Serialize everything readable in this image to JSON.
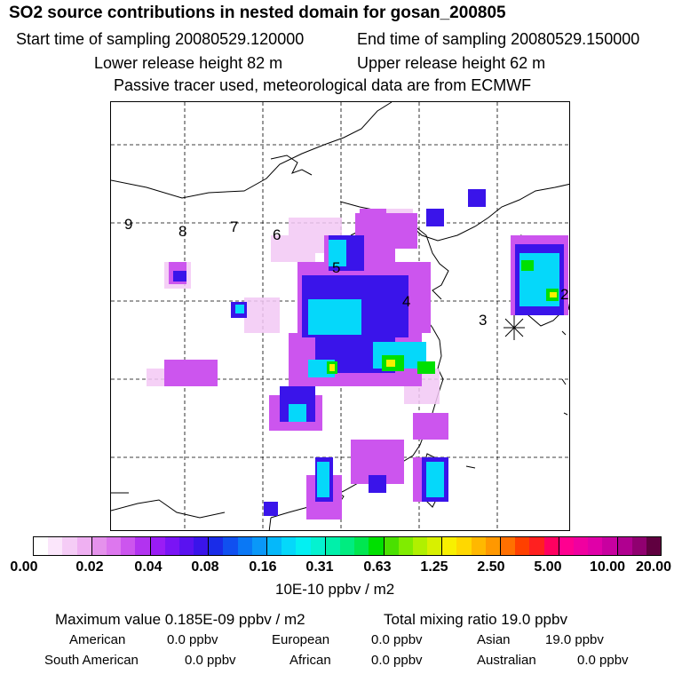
{
  "header": {
    "title": "SO2 source contributions in nested domain for gosan_200805",
    "start_time": "Start time of sampling 20080529.120000",
    "end_time": "End time of sampling 20080529.150000",
    "lower_height": "Lower release height   82 m",
    "upper_height": "Upper release height   62 m",
    "tracer_note": "Passive tracer used, meteorological data are from ECMWF"
  },
  "map": {
    "trajectory_labels": [
      "9",
      "8",
      "7",
      "6",
      "5",
      "4",
      "3",
      "2"
    ],
    "receptor_icon": "asterisk-icon"
  },
  "colorbar": {
    "unit": "10E-10 ppbv / m2",
    "tick_labels": [
      "0.00",
      "0.02",
      "0.04",
      "0.08",
      "0.16",
      "0.31",
      "0.63",
      "1.25",
      "2.50",
      "5.00",
      "10.00",
      "20.00"
    ],
    "colors": [
      "#ffffff",
      "#fbe6fb",
      "#f5ccf6",
      "#efb0f2",
      "#e592ec",
      "#dd77ee",
      "#cc55ee",
      "#b233f0",
      "#9a1cf5",
      "#7a14f5",
      "#5a12f0",
      "#3a14ea",
      "#1a2ce8",
      "#1050f0",
      "#0a78f5",
      "#0a98f8",
      "#05b8fa",
      "#05d8fa",
      "#03f0f2",
      "#05f2d0",
      "#00f0aa",
      "#00ec80",
      "#00e650",
      "#00e000",
      "#4ae000",
      "#80ec00",
      "#b0f000",
      "#d8f000",
      "#f8f000",
      "#ffd800",
      "#ffb800",
      "#ff9800",
      "#ff7000",
      "#ff4000",
      "#ff2020",
      "#ff0060",
      "#ff0090",
      "#f000a0",
      "#e000a8",
      "#c800a0",
      "#b00090",
      "#900070",
      "#600040"
    ]
  },
  "footer": {
    "max_label": "Maximum value  0.185E-09 ppbv / m2",
    "total_label": "Total mixing ratio       19.0 ppbv",
    "regions": [
      {
        "name": "American",
        "value": "0.0 ppbv"
      },
      {
        "name": "European",
        "value": "0.0 ppbv"
      },
      {
        "name": "Asian",
        "value": "19.0 ppbv"
      },
      {
        "name": "South American",
        "value": "0.0 ppbv"
      },
      {
        "name": "African",
        "value": "0.0 ppbv"
      },
      {
        "name": "Australian",
        "value": "0.0 ppbv"
      }
    ]
  }
}
